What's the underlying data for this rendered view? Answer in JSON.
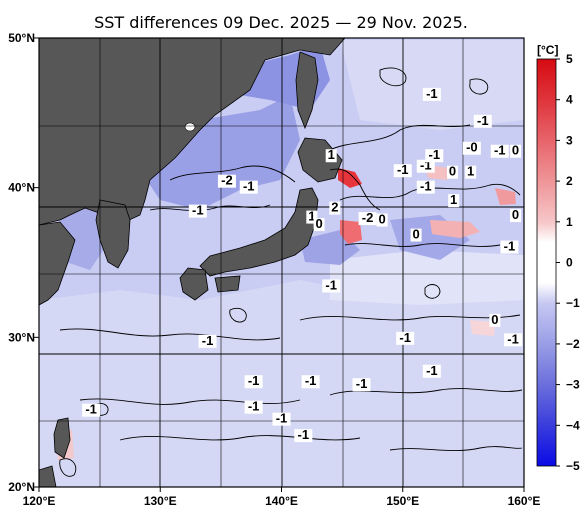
{
  "title": "SST differences 09 Dec. 2025 — 29 Nov. 2025.",
  "map": {
    "lon_range": [
      120,
      160
    ],
    "lat_range": [
      20,
      50
    ],
    "lon_ticks": [
      {
        "value": 120,
        "label": "120°E"
      },
      {
        "value": 130,
        "label": "130°E"
      },
      {
        "value": 140,
        "label": "140°E"
      },
      {
        "value": 150,
        "label": "150°E"
      },
      {
        "value": 160,
        "label": "160°E"
      }
    ],
    "lat_ticks": [
      {
        "value": 50,
        "label": "50°N"
      },
      {
        "value": 40,
        "label": "40°N"
      },
      {
        "value": 30,
        "label": "30°N"
      },
      {
        "value": 20,
        "label": "20°N"
      }
    ],
    "grid": true,
    "colors": {
      "land": "#575757",
      "ocean_light": "#d6d9f4",
      "ocean_mid": "#a9aeea",
      "ocean_dark": "#7f86df",
      "warm": "#e8353b",
      "warm_light": "#f4b1b4"
    }
  },
  "colorbar": {
    "unit": "[°C]",
    "ticks": [
      "5",
      "4",
      "3",
      "2",
      "1",
      "0",
      "−1",
      "−2",
      "−3",
      "−4",
      "−5"
    ],
    "range": [
      -5,
      5
    ],
    "colors": [
      "#0a0ae6",
      "#3a3ddc",
      "#6b6fdc",
      "#9a9ee6",
      "#c6c8f2",
      "#ffffff",
      "#f6c6c8",
      "#ef9598",
      "#e7646a",
      "#df343b",
      "#d60a12"
    ]
  },
  "contour_labels": [
    {
      "text": "-1",
      "lon": 152.4,
      "lat": 46.0
    },
    {
      "text": "-1",
      "lon": 156.6,
      "lat": 44.2
    },
    {
      "text": "-0",
      "lon": 155.7,
      "lat": 42.4
    },
    {
      "text": "-1",
      "lon": 158.0,
      "lat": 42.2
    },
    {
      "text": "0",
      "lon": 159.3,
      "lat": 42.2
    },
    {
      "text": "1",
      "lon": 144.1,
      "lat": 41.9
    },
    {
      "text": "-1",
      "lon": 150.0,
      "lat": 40.9
    },
    {
      "text": "-1",
      "lon": 151.9,
      "lat": 41.2
    },
    {
      "text": "-1",
      "lon": 152.6,
      "lat": 41.9
    },
    {
      "text": "0",
      "lon": 154.1,
      "lat": 40.8
    },
    {
      "text": "1",
      "lon": 155.6,
      "lat": 40.8
    },
    {
      "text": "-2",
      "lon": 135.5,
      "lat": 40.2
    },
    {
      "text": "-1",
      "lon": 137.3,
      "lat": 39.8
    },
    {
      "text": "-1",
      "lon": 133.1,
      "lat": 38.2
    },
    {
      "text": "-1",
      "lon": 151.9,
      "lat": 39.8
    },
    {
      "text": "1",
      "lon": 154.2,
      "lat": 38.9
    },
    {
      "text": "1",
      "lon": 142.5,
      "lat": 37.8
    },
    {
      "text": "2",
      "lon": 144.4,
      "lat": 38.4
    },
    {
      "text": "0",
      "lon": 143.1,
      "lat": 37.3
    },
    {
      "text": "-2",
      "lon": 147.1,
      "lat": 37.7
    },
    {
      "text": "0",
      "lon": 148.3,
      "lat": 37.6
    },
    {
      "text": "0",
      "lon": 159.3,
      "lat": 37.9
    },
    {
      "text": "0",
      "lon": 151.1,
      "lat": 36.6
    },
    {
      "text": "-1",
      "lon": 158.8,
      "lat": 35.8
    },
    {
      "text": "-1",
      "lon": 144.1,
      "lat": 33.2
    },
    {
      "text": "0",
      "lon": 157.6,
      "lat": 30.9
    },
    {
      "text": "-1",
      "lon": 133.9,
      "lat": 29.5
    },
    {
      "text": "-1",
      "lon": 150.2,
      "lat": 29.7
    },
    {
      "text": "-1",
      "lon": 159.1,
      "lat": 29.6
    },
    {
      "text": "-1",
      "lon": 137.7,
      "lat": 26.8
    },
    {
      "text": "-1",
      "lon": 142.4,
      "lat": 26.8
    },
    {
      "text": "-1",
      "lon": 146.6,
      "lat": 26.6
    },
    {
      "text": "-1",
      "lon": 152.4,
      "lat": 27.5
    },
    {
      "text": "-1",
      "lon": 137.7,
      "lat": 25.1
    },
    {
      "text": "-1",
      "lon": 124.3,
      "lat": 24.9
    },
    {
      "text": "-1",
      "lon": 140.0,
      "lat": 24.3
    },
    {
      "text": "-1",
      "lon": 141.8,
      "lat": 23.2
    }
  ]
}
